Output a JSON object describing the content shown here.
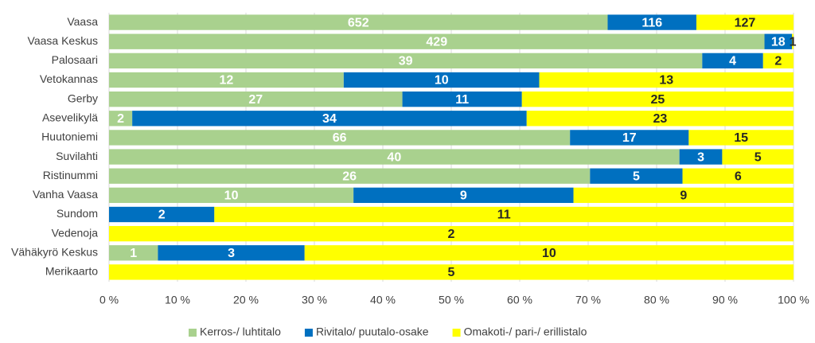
{
  "chart_data": {
    "type": "bar",
    "orientation": "horizontal",
    "stacking": "percent",
    "categories": [
      "Vaasa",
      "Vaasa Keskus",
      "Palosaari",
      "Vetokannas",
      "Gerby",
      "Asevelikylä",
      "Huutoniemi",
      "Suvilahti",
      "Ristinummi",
      "Vanha Vaasa",
      "Sundom",
      "Vedenoja",
      "Vähäkyrö Keskus",
      "Merikaarto"
    ],
    "series": [
      {
        "name": "Kerros-/ luhtitalo",
        "color": "#a9d18e",
        "label_color": "#ffffff",
        "values": [
          652,
          429,
          39,
          12,
          27,
          2,
          66,
          40,
          26,
          10,
          null,
          null,
          1,
          null
        ]
      },
      {
        "name": "Rivitalo/ puutalo-osake",
        "color": "#0070c0",
        "label_color": "#ffffff",
        "values": [
          116,
          18,
          4,
          10,
          11,
          34,
          17,
          3,
          5,
          9,
          2,
          null,
          3,
          null
        ]
      },
      {
        "name": "Omakoti-/ pari-/ erillistalo",
        "color": "#ffff00",
        "label_color": "#262626",
        "values": [
          127,
          1,
          2,
          13,
          25,
          23,
          15,
          5,
          6,
          9,
          11,
          2,
          10,
          5
        ]
      }
    ],
    "xlim": [
      0,
      100
    ],
    "xticks": [
      {
        "value": 0,
        "label": "0 %"
      },
      {
        "value": 10,
        "label": "10 %"
      },
      {
        "value": 20,
        "label": "20 %"
      },
      {
        "value": 30,
        "label": "30 %"
      },
      {
        "value": 40,
        "label": "40 %"
      },
      {
        "value": 50,
        "label": "50 %"
      },
      {
        "value": 60,
        "label": "60 %"
      },
      {
        "value": 70,
        "label": "70 %"
      },
      {
        "value": 80,
        "label": "80 %"
      },
      {
        "value": 90,
        "label": "90 %"
      },
      {
        "value": 100,
        "label": "100 %"
      }
    ],
    "grid": true,
    "legend": "bottom"
  }
}
